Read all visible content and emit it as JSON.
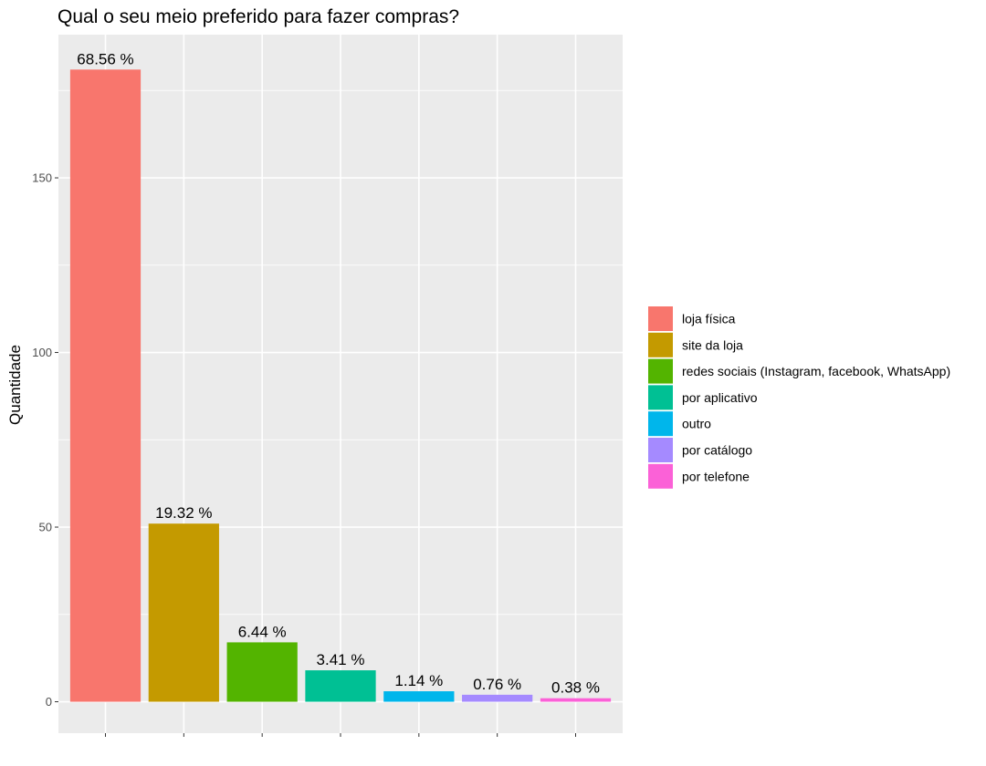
{
  "chart_data": {
    "type": "bar",
    "title": "Qual o seu meio preferido para fazer compras?",
    "xlabel": "",
    "ylabel": "Quantidade",
    "ylim": [
      -9,
      191
    ],
    "yticks": [
      0,
      50,
      100,
      150
    ],
    "grid": true,
    "legend_position": "right",
    "categories": [
      "loja física",
      "site da loja",
      "redes sociais (Instagram, facebook, WhatsApp)",
      "por aplicativo",
      "outro",
      "por catálogo",
      "por telefone"
    ],
    "values": [
      181,
      51,
      17,
      9,
      3,
      2,
      1
    ],
    "data_labels": [
      "68.56 %",
      "19.32 %",
      "6.44 %",
      "3.41 %",
      "1.14 %",
      "0.76 %",
      "0.38 %"
    ],
    "colors": [
      "#F8766D",
      "#C49A00",
      "#53B400",
      "#00C094",
      "#00B6EB",
      "#A58AFF",
      "#FB61D7"
    ]
  }
}
